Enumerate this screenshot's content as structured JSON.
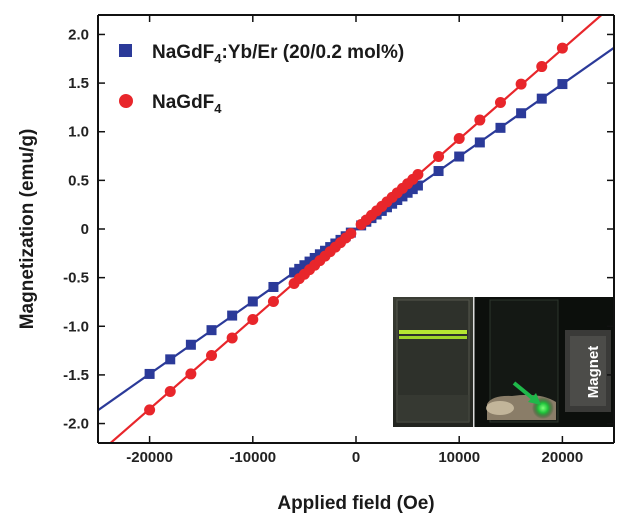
{
  "chart_data": {
    "type": "scatter",
    "title": "",
    "xlabel": "Applied field (Oe)",
    "ylabel": "Magnetization (emu/g)",
    "xlim": [
      -25000,
      25000
    ],
    "ylim": [
      -2.2,
      2.2
    ],
    "x_ticks": [
      -20000,
      -10000,
      0,
      10000,
      20000
    ],
    "x_tick_labels": [
      "-20000",
      "-10000",
      "0",
      "10000",
      "20000"
    ],
    "y_ticks": [
      2.0,
      1.5,
      1.0,
      0.5,
      0,
      -0.5,
      -1.0,
      -1.5,
      -2.0
    ],
    "y_tick_labels": [
      "2.0",
      "1.5",
      "1.0",
      "0.5",
      "0",
      "-0.5",
      "-1.0",
      "-1.5",
      "-2.0"
    ],
    "grid": false,
    "legend_position": "top-left",
    "series": [
      {
        "name_main": "NaGdF",
        "name_sub": "4",
        "name_rest": ":Yb/Er (20/0.2 mol%)",
        "marker": "square",
        "color": "#2b3a99",
        "fit_color": "#2b3a99",
        "fit_slope": 7.45e-05,
        "x": [
          -20000,
          -18000,
          -16000,
          -14000,
          -12000,
          -10000,
          -8000,
          -6000,
          -5500,
          -5000,
          -4500,
          -4000,
          -3500,
          -3000,
          -2500,
          -2000,
          -1500,
          -1000,
          -500,
          500,
          1000,
          1500,
          2000,
          2500,
          3000,
          3500,
          4000,
          4500,
          5000,
          5500,
          6000,
          8000,
          10000,
          12000,
          14000,
          16000,
          18000,
          20000
        ],
        "y": [
          -1.49,
          -1.34,
          -1.19,
          -1.04,
          -0.89,
          -0.745,
          -0.596,
          -0.447,
          -0.41,
          -0.3725,
          -0.335,
          -0.298,
          -0.26,
          -0.2235,
          -0.186,
          -0.149,
          -0.112,
          -0.0745,
          -0.037,
          0.037,
          0.0745,
          0.112,
          0.149,
          0.186,
          0.2235,
          0.26,
          0.298,
          0.335,
          0.3725,
          0.41,
          0.447,
          0.596,
          0.745,
          0.89,
          1.04,
          1.19,
          1.34,
          1.49
        ]
      },
      {
        "name_main": "NaGdF",
        "name_sub": "4",
        "name_rest": "",
        "marker": "circle",
        "color": "#e8262b",
        "fit_color": "#e8262b",
        "fit_slope": 9.25e-05,
        "x": [
          -20000,
          -18000,
          -16000,
          -14000,
          -12000,
          -10000,
          -8000,
          -6000,
          -5500,
          -5000,
          -4500,
          -4000,
          -3500,
          -3000,
          -2500,
          -2000,
          -1500,
          -1000,
          -500,
          500,
          1000,
          1500,
          2000,
          2500,
          3000,
          3500,
          4000,
          4500,
          5000,
          5500,
          6000,
          8000,
          10000,
          12000,
          14000,
          16000,
          18000,
          20000
        ],
        "y": [
          -1.86,
          -1.67,
          -1.49,
          -1.3,
          -1.12,
          -0.93,
          -0.745,
          -0.56,
          -0.51,
          -0.465,
          -0.418,
          -0.372,
          -0.325,
          -0.279,
          -0.232,
          -0.186,
          -0.14,
          -0.093,
          -0.046,
          0.046,
          0.093,
          0.14,
          0.186,
          0.232,
          0.279,
          0.325,
          0.372,
          0.418,
          0.465,
          0.51,
          0.56,
          0.745,
          0.93,
          1.12,
          1.3,
          1.49,
          1.67,
          1.86
        ]
      }
    ],
    "inset": {
      "label": "Magnet"
    }
  }
}
